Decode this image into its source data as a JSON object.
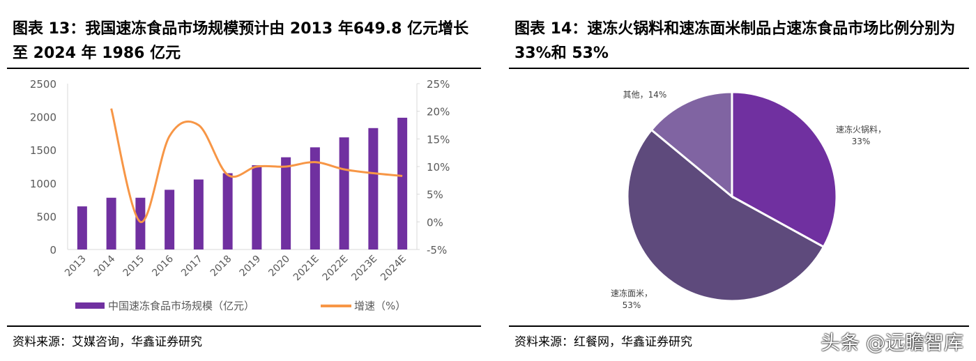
{
  "left": {
    "title": "图表 13：我国速冻食品市场规模预计由 2013 年649.8 亿元增长至 2024 年 1986 亿元",
    "source": "资料来源：艾媒咨询，华鑫证券研究"
  },
  "right": {
    "title": "图表 14：速冻火锅料和速冻面米制品占速冻食品市场比例分别为 33%和 53%",
    "source": "资料来源：红餐网，华鑫证券研究"
  },
  "watermark": "头条 @远瞻智库",
  "chart_data": [
    {
      "type": "bar+line",
      "categories": [
        "2013",
        "2014",
        "2015",
        "2016",
        "2017",
        "2018",
        "2019",
        "2020",
        "2021E",
        "2022E",
        "2023E",
        "2024E"
      ],
      "series": [
        {
          "name": "中国速冻食品市场规模（亿元）",
          "type": "bar",
          "axis": "left",
          "color": "#7030a0",
          "values": [
            649.8,
            780,
            780,
            900,
            1055,
            1150,
            1270,
            1390,
            1540,
            1690,
            1830,
            1986
          ]
        },
        {
          "name": "增速（%）",
          "type": "line",
          "axis": "right",
          "color": "#f79646",
          "values": [
            null,
            20.5,
            0,
            15.5,
            17.5,
            8.5,
            10,
            10,
            10.8,
            9.5,
            8.8,
            8.3
          ]
        }
      ],
      "yticks_left": [
        "0",
        "500",
        "1000",
        "1500",
        "2000",
        "2500"
      ],
      "ylim_left": [
        0,
        2500
      ],
      "yticks_right": [
        "-5%",
        "0%",
        "5%",
        "10%",
        "15%",
        "20%",
        "25%"
      ],
      "ylim_right": [
        -5,
        25
      ],
      "legend": "bottom",
      "grid": false
    },
    {
      "type": "pie",
      "slices": [
        {
          "label": "速冻火锅料",
          "value": 33,
          "pct": "33%",
          "color": "#7030a0"
        },
        {
          "label": "速冻面米",
          "value": 53,
          "pct": "53%",
          "color": "#5e4a7c"
        },
        {
          "label": "其他",
          "value": 14,
          "pct": "14%",
          "color": "#8064a2"
        }
      ]
    }
  ]
}
